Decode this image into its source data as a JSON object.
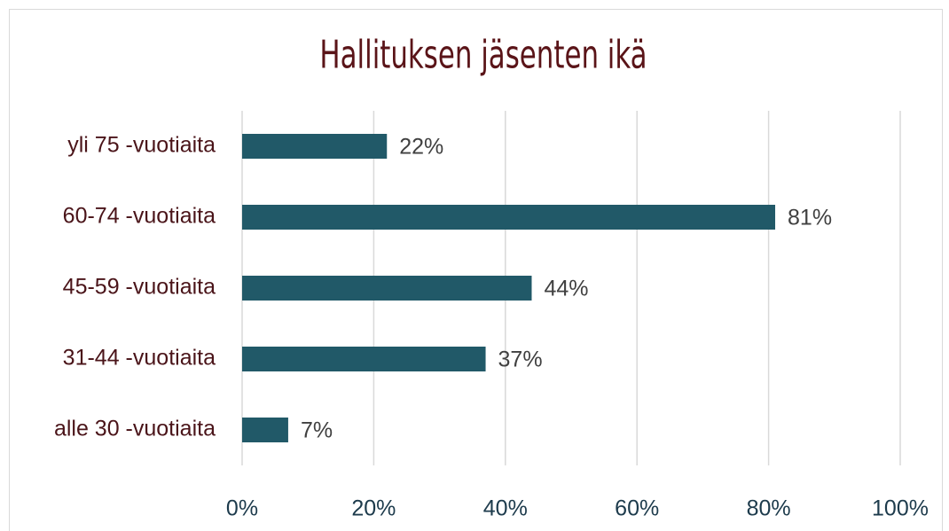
{
  "chart_data": {
    "type": "barh",
    "title": "Hallituksen jäsenten ikä",
    "categories": [
      "yli 75 -vuotiaita",
      "60-74 -vuotiaita",
      "45-59 -vuotiaita",
      "31-44 -vuotiaita",
      "alle 30 -vuotiaita"
    ],
    "values": [
      22,
      81,
      44,
      37,
      7
    ],
    "value_labels": [
      "22%",
      "81%",
      "44%",
      "37%",
      "7%"
    ],
    "color": "#215968",
    "xlim": [
      0,
      100
    ],
    "xticks": [
      {
        "value": 0,
        "label": "0%"
      },
      {
        "value": 20,
        "label": "20%"
      },
      {
        "value": 40,
        "label": "40%"
      },
      {
        "value": 60,
        "label": "60%"
      },
      {
        "value": 80,
        "label": "80%"
      },
      {
        "value": 100,
        "label": "100%"
      }
    ],
    "grid": true
  }
}
